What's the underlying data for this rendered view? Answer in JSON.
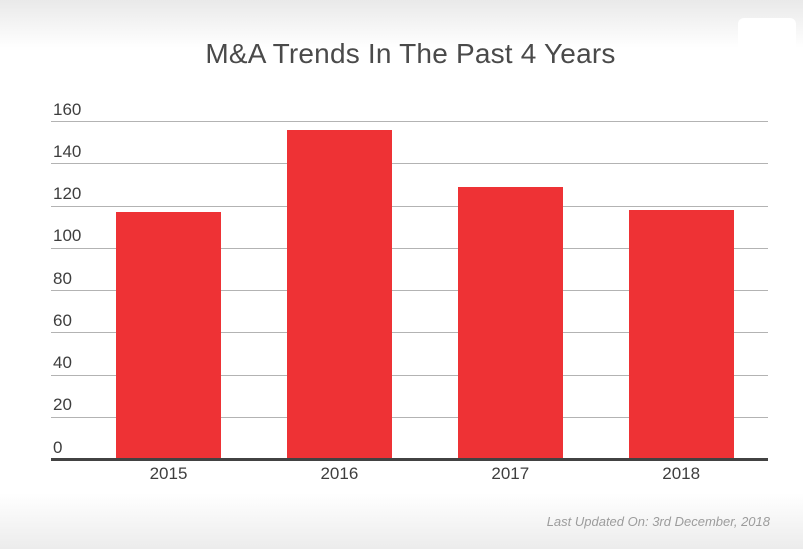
{
  "title": "M&A Trends In The Past 4 Years",
  "footer": {
    "last_updated": "Last Updated On: 3rd December, 2018"
  },
  "chart_data": {
    "type": "bar",
    "title": "M&A Trends In The Past 4 Years",
    "categories": [
      "2015",
      "2016",
      "2017",
      "2018"
    ],
    "values": [
      117,
      156,
      129,
      118
    ],
    "xlabel": "",
    "ylabel": "",
    "ylim": [
      0,
      160
    ],
    "yticks": [
      0,
      20,
      40,
      60,
      80,
      100,
      120,
      140,
      160
    ],
    "grid": true,
    "legend": false,
    "bar_color": "#ee3235"
  },
  "colors": {
    "bar": "#ee3235",
    "gridline": "#b3b3b3",
    "axis_baseline": "#424242",
    "tick_text": "#3e3e3e",
    "title_text": "#4a4a4a",
    "footer_text": "#9c9c9c",
    "top_gradient": "#e9e9e9",
    "bottom_gradient": "#ececec"
  }
}
